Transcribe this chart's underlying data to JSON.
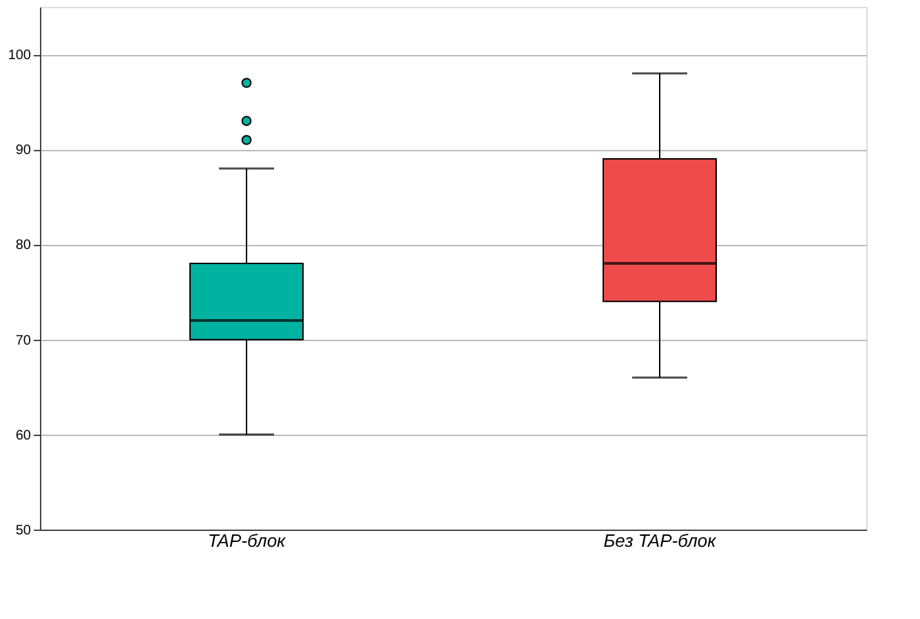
{
  "chart_data": {
    "type": "box",
    "categories": [
      "TAP-блок",
      "Без TAP-блок"
    ],
    "boxes": [
      {
        "low": 60,
        "q1": 70,
        "median": 72,
        "q3": 78,
        "high": 88,
        "outliers": [
          91,
          93,
          97
        ]
      },
      {
        "low": 66,
        "q1": 74,
        "median": 78,
        "q3": 89,
        "high": 98
      }
    ],
    "colors": [
      "#00b2a0",
      "#ee4b4b"
    ],
    "ylim": [
      50,
      105
    ],
    "yticks": [
      50,
      60,
      70,
      80,
      90,
      100
    ],
    "grid": "y"
  }
}
